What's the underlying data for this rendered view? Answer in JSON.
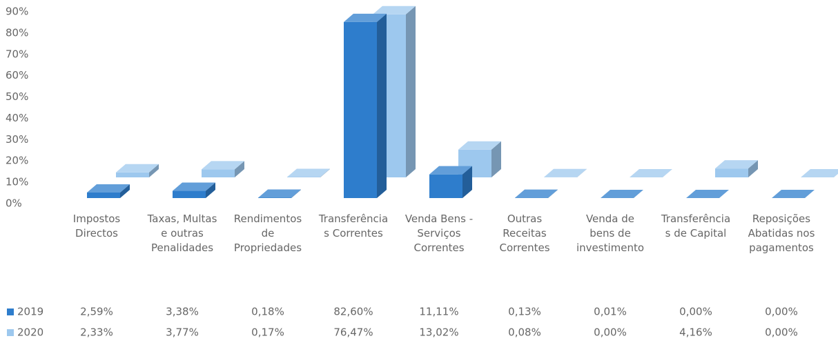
{
  "chart_data": {
    "type": "bar3d",
    "categories": [
      "Impostos Directos",
      "Taxas, Multas e outras Penalidades",
      "Rendimentos de Propriedades",
      "Transferências Correntes",
      "Venda Bens - Serviços Correntes",
      "Outras Receitas Correntes",
      "Venda de bens de investimento",
      "Transferências de Capital",
      "Reposições Abatidas nos pagamentos"
    ],
    "series": [
      {
        "name": "2019",
        "color": "#2e7dcc",
        "values": [
          2.59,
          3.38,
          0.18,
          82.6,
          11.11,
          0.13,
          0.01,
          0.0,
          0.0
        ],
        "value_labels": [
          "2,59%",
          "3,38%",
          "0,18%",
          "82,60%",
          "11,11%",
          "0,13%",
          "0,01%",
          "0,00%",
          "0,00%"
        ]
      },
      {
        "name": "2020",
        "color": "#9dc8ee",
        "values": [
          2.33,
          3.77,
          0.17,
          76.47,
          13.02,
          0.08,
          0.0,
          4.16,
          0.0
        ],
        "value_labels": [
          "2,33%",
          "3,77%",
          "0,17%",
          "76,47%",
          "13,02%",
          "0,08%",
          "0,00%",
          "4,16%",
          "0,00%"
        ]
      }
    ],
    "ylim": [
      0,
      90
    ],
    "yticks": [
      {
        "value": 0,
        "label": "0%"
      },
      {
        "value": 10,
        "label": "10%"
      },
      {
        "value": 20,
        "label": "20%"
      },
      {
        "value": 30,
        "label": "30%"
      },
      {
        "value": 40,
        "label": "40%"
      },
      {
        "value": 50,
        "label": "50%"
      },
      {
        "value": 60,
        "label": "60%"
      },
      {
        "value": 70,
        "label": "70%"
      },
      {
        "value": 80,
        "label": "80%"
      },
      {
        "value": 90,
        "label": "90%"
      }
    ],
    "grid": false,
    "legend": "bottom-left"
  }
}
